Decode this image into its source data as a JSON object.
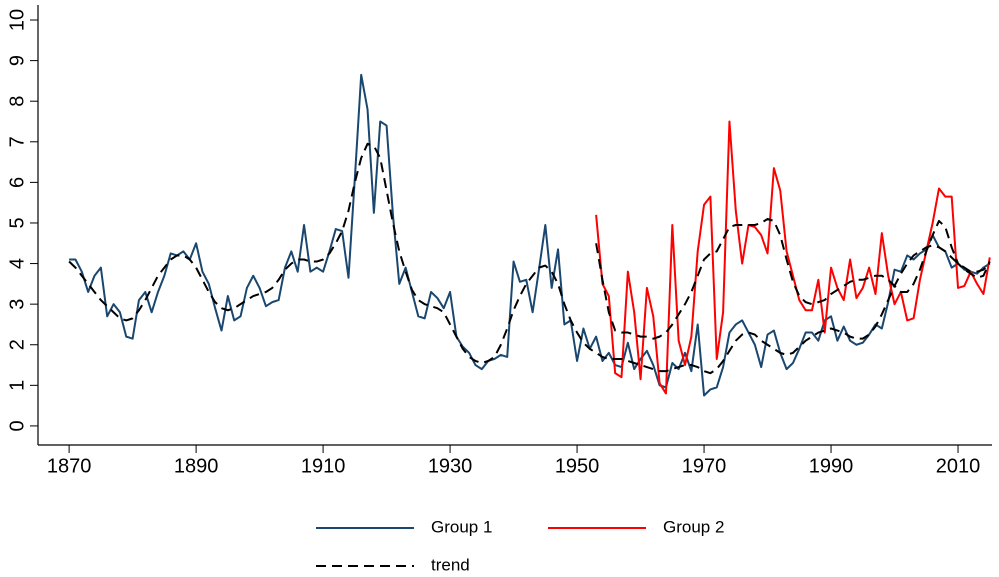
{
  "chart_data": {
    "type": "line",
    "x": [
      1870,
      1871,
      1872,
      1873,
      1874,
      1875,
      1876,
      1877,
      1878,
      1879,
      1880,
      1881,
      1882,
      1883,
      1884,
      1885,
      1886,
      1887,
      1888,
      1889,
      1890,
      1891,
      1892,
      1893,
      1894,
      1895,
      1896,
      1897,
      1898,
      1899,
      1900,
      1901,
      1902,
      1903,
      1904,
      1905,
      1906,
      1907,
      1908,
      1909,
      1910,
      1911,
      1912,
      1913,
      1914,
      1915,
      1916,
      1917,
      1918,
      1919,
      1920,
      1921,
      1922,
      1923,
      1924,
      1925,
      1926,
      1927,
      1928,
      1929,
      1930,
      1931,
      1932,
      1933,
      1934,
      1935,
      1936,
      1937,
      1938,
      1939,
      1940,
      1941,
      1942,
      1943,
      1944,
      1945,
      1946,
      1947,
      1948,
      1949,
      1950,
      1951,
      1952,
      1953,
      1954,
      1955,
      1956,
      1957,
      1958,
      1959,
      1960,
      1961,
      1962,
      1963,
      1964,
      1965,
      1966,
      1967,
      1968,
      1969,
      1970,
      1971,
      1972,
      1973,
      1974,
      1975,
      1976,
      1977,
      1978,
      1979,
      1980,
      1981,
      1982,
      1983,
      1984,
      1985,
      1986,
      1987,
      1988,
      1989,
      1990,
      1991,
      1992,
      1993,
      1994,
      1995,
      1996,
      1997,
      1998,
      1999,
      2000,
      2001,
      2002,
      2003,
      2004,
      2005,
      2006,
      2007,
      2008,
      2009,
      2010,
      2011,
      2012,
      2013,
      2014,
      2015
    ],
    "series": [
      {
        "name": "Group 1",
        "color": "#1a476f",
        "dash": false,
        "values": [
          4.1,
          4.1,
          3.8,
          3.3,
          3.7,
          3.9,
          2.7,
          3.0,
          2.8,
          2.2,
          2.15,
          3.1,
          3.3,
          2.8,
          3.3,
          3.7,
          4.25,
          4.2,
          4.3,
          4.1,
          4.5,
          3.8,
          3.5,
          2.9,
          2.35,
          3.2,
          2.6,
          2.7,
          3.4,
          3.7,
          3.4,
          2.95,
          3.05,
          3.1,
          3.9,
          4.3,
          3.8,
          4.95,
          3.8,
          3.9,
          3.8,
          4.3,
          4.85,
          4.8,
          3.65,
          6.1,
          8.65,
          7.8,
          5.25,
          7.5,
          7.4,
          5.2,
          3.5,
          3.9,
          3.3,
          2.7,
          2.65,
          3.3,
          3.15,
          2.9,
          3.3,
          2.2,
          1.95,
          1.8,
          1.5,
          1.4,
          1.6,
          1.65,
          1.75,
          1.7,
          4.05,
          3.55,
          3.6,
          2.8,
          3.85,
          4.95,
          3.4,
          4.35,
          2.5,
          2.6,
          1.6,
          2.4,
          1.9,
          2.2,
          1.6,
          1.8,
          1.5,
          1.45,
          2.05,
          1.4,
          1.65,
          1.85,
          1.5,
          1.0,
          0.95,
          1.55,
          1.4,
          1.8,
          1.35,
          2.5,
          0.75,
          0.9,
          0.95,
          1.45,
          2.3,
          2.5,
          2.6,
          2.3,
          2.0,
          1.45,
          2.25,
          2.35,
          1.8,
          1.4,
          1.55,
          1.9,
          2.3,
          2.3,
          2.1,
          2.6,
          2.7,
          2.1,
          2.45,
          2.1,
          2.0,
          2.05,
          2.25,
          2.5,
          2.4,
          3.05,
          3.85,
          3.8,
          4.2,
          4.1,
          4.25,
          4.35,
          4.7,
          4.4,
          4.3,
          3.9,
          4.0,
          3.85,
          3.8,
          3.75,
          3.9,
          4.0
        ]
      },
      {
        "name": "Group 2",
        "color": "#ff0000",
        "dash": false,
        "values": [
          null,
          null,
          null,
          null,
          null,
          null,
          null,
          null,
          null,
          null,
          null,
          null,
          null,
          null,
          null,
          null,
          null,
          null,
          null,
          null,
          null,
          null,
          null,
          null,
          null,
          null,
          null,
          null,
          null,
          null,
          null,
          null,
          null,
          null,
          null,
          null,
          null,
          null,
          null,
          null,
          null,
          null,
          null,
          null,
          null,
          null,
          null,
          null,
          null,
          null,
          null,
          null,
          null,
          null,
          null,
          null,
          null,
          null,
          null,
          null,
          null,
          null,
          null,
          null,
          null,
          null,
          null,
          null,
          null,
          null,
          null,
          null,
          null,
          null,
          null,
          null,
          null,
          null,
          null,
          null,
          null,
          null,
          null,
          5.2,
          3.5,
          3.2,
          1.3,
          1.2,
          3.8,
          2.8,
          1.15,
          3.4,
          2.7,
          1.05,
          0.8,
          4.95,
          2.1,
          1.5,
          2.2,
          4.3,
          5.45,
          5.65,
          1.65,
          2.8,
          7.5,
          5.3,
          4.0,
          4.95,
          4.9,
          4.7,
          4.25,
          6.35,
          5.8,
          4.3,
          3.7,
          3.1,
          2.85,
          2.85,
          3.6,
          2.3,
          3.9,
          3.4,
          3.1,
          4.1,
          3.15,
          3.4,
          3.9,
          3.25,
          4.75,
          3.7,
          3.0,
          3.3,
          2.6,
          2.65,
          3.6,
          4.3,
          5.0,
          5.85,
          5.65,
          5.65,
          3.4,
          3.45,
          3.8,
          3.5,
          3.25,
          4.15
        ]
      },
      {
        "name": "trend",
        "color": "#000000",
        "dash": true,
        "values": [
          4.05,
          3.9,
          3.7,
          3.5,
          3.3,
          3.1,
          2.95,
          2.8,
          2.65,
          2.6,
          2.65,
          2.85,
          3.1,
          3.4,
          3.7,
          3.9,
          4.1,
          4.2,
          4.2,
          4.1,
          3.9,
          3.6,
          3.3,
          3.05,
          2.9,
          2.85,
          2.9,
          3.0,
          3.1,
          3.2,
          3.25,
          3.3,
          3.4,
          3.6,
          3.85,
          4.0,
          4.1,
          4.1,
          4.05,
          4.05,
          4.1,
          4.25,
          4.5,
          4.8,
          5.3,
          6.0,
          6.6,
          6.95,
          6.9,
          6.6,
          5.8,
          5.0,
          4.3,
          3.8,
          3.35,
          3.1,
          3.0,
          2.95,
          2.9,
          2.8,
          2.5,
          2.2,
          1.9,
          1.7,
          1.6,
          1.55,
          1.6,
          1.7,
          2.0,
          2.4,
          2.85,
          3.2,
          3.5,
          3.7,
          3.9,
          3.95,
          3.8,
          3.5,
          3.0,
          2.6,
          2.3,
          2.05,
          1.9,
          1.8,
          1.7,
          1.65,
          1.65,
          1.65,
          1.6,
          1.55,
          1.5,
          1.45,
          1.4,
          1.35,
          1.35,
          1.4,
          1.45,
          1.5,
          1.5,
          1.45,
          1.35,
          1.3,
          1.4,
          1.6,
          1.85,
          2.1,
          2.25,
          2.3,
          2.25,
          2.1,
          2.0,
          1.9,
          1.8,
          1.75,
          1.8,
          1.95,
          2.1,
          2.2,
          2.3,
          2.35,
          2.4,
          2.35,
          2.3,
          2.2,
          2.15,
          2.15,
          2.25,
          2.45,
          2.75,
          3.1,
          3.45,
          3.75,
          4.0,
          4.2,
          4.3,
          4.4,
          4.45,
          4.4,
          4.3,
          4.15,
          4.0,
          3.9,
          3.8,
          3.8,
          3.85,
          4.0
        ]
      },
      {
        "color": "#000000",
        "dash": true,
        "values": [
          null,
          null,
          null,
          null,
          null,
          null,
          null,
          null,
          null,
          null,
          null,
          null,
          null,
          null,
          null,
          null,
          null,
          null,
          null,
          null,
          null,
          null,
          null,
          null,
          null,
          null,
          null,
          null,
          null,
          null,
          null,
          null,
          null,
          null,
          null,
          null,
          null,
          null,
          null,
          null,
          null,
          null,
          null,
          null,
          null,
          null,
          null,
          null,
          null,
          null,
          null,
          null,
          null,
          null,
          null,
          null,
          null,
          null,
          null,
          null,
          null,
          null,
          null,
          null,
          null,
          null,
          null,
          null,
          null,
          null,
          null,
          null,
          null,
          null,
          null,
          null,
          null,
          null,
          null,
          null,
          null,
          null,
          null,
          4.5,
          3.6,
          2.8,
          2.35,
          2.3,
          2.3,
          2.25,
          2.2,
          2.2,
          2.15,
          2.2,
          2.3,
          2.5,
          2.75,
          3.0,
          3.3,
          3.7,
          4.1,
          4.25,
          4.3,
          4.6,
          4.9,
          4.95,
          4.95,
          4.95,
          4.95,
          5.0,
          5.1,
          5.05,
          4.7,
          4.1,
          3.55,
          3.2,
          3.05,
          3.0,
          3.05,
          3.1,
          3.25,
          3.35,
          3.45,
          3.55,
          3.6,
          3.6,
          3.65,
          3.7,
          3.7,
          3.6,
          3.45,
          3.3,
          3.3,
          3.5,
          3.85,
          4.3,
          4.7,
          5.05,
          4.9,
          4.4,
          4.0,
          3.85,
          3.75,
          3.65,
          3.7,
          4.05
        ]
      }
    ],
    "xlim": [
      1865.1,
      2015.35
    ],
    "xticks": [
      1870,
      1890,
      1910,
      1930,
      1950,
      1970,
      1990,
      2010
    ],
    "ylim": [
      -0.47,
      10.37
    ],
    "yticks": [
      0,
      1,
      2,
      3,
      4,
      5,
      6,
      7,
      8,
      9,
      10
    ],
    "grid": false,
    "legend": "bottom"
  }
}
